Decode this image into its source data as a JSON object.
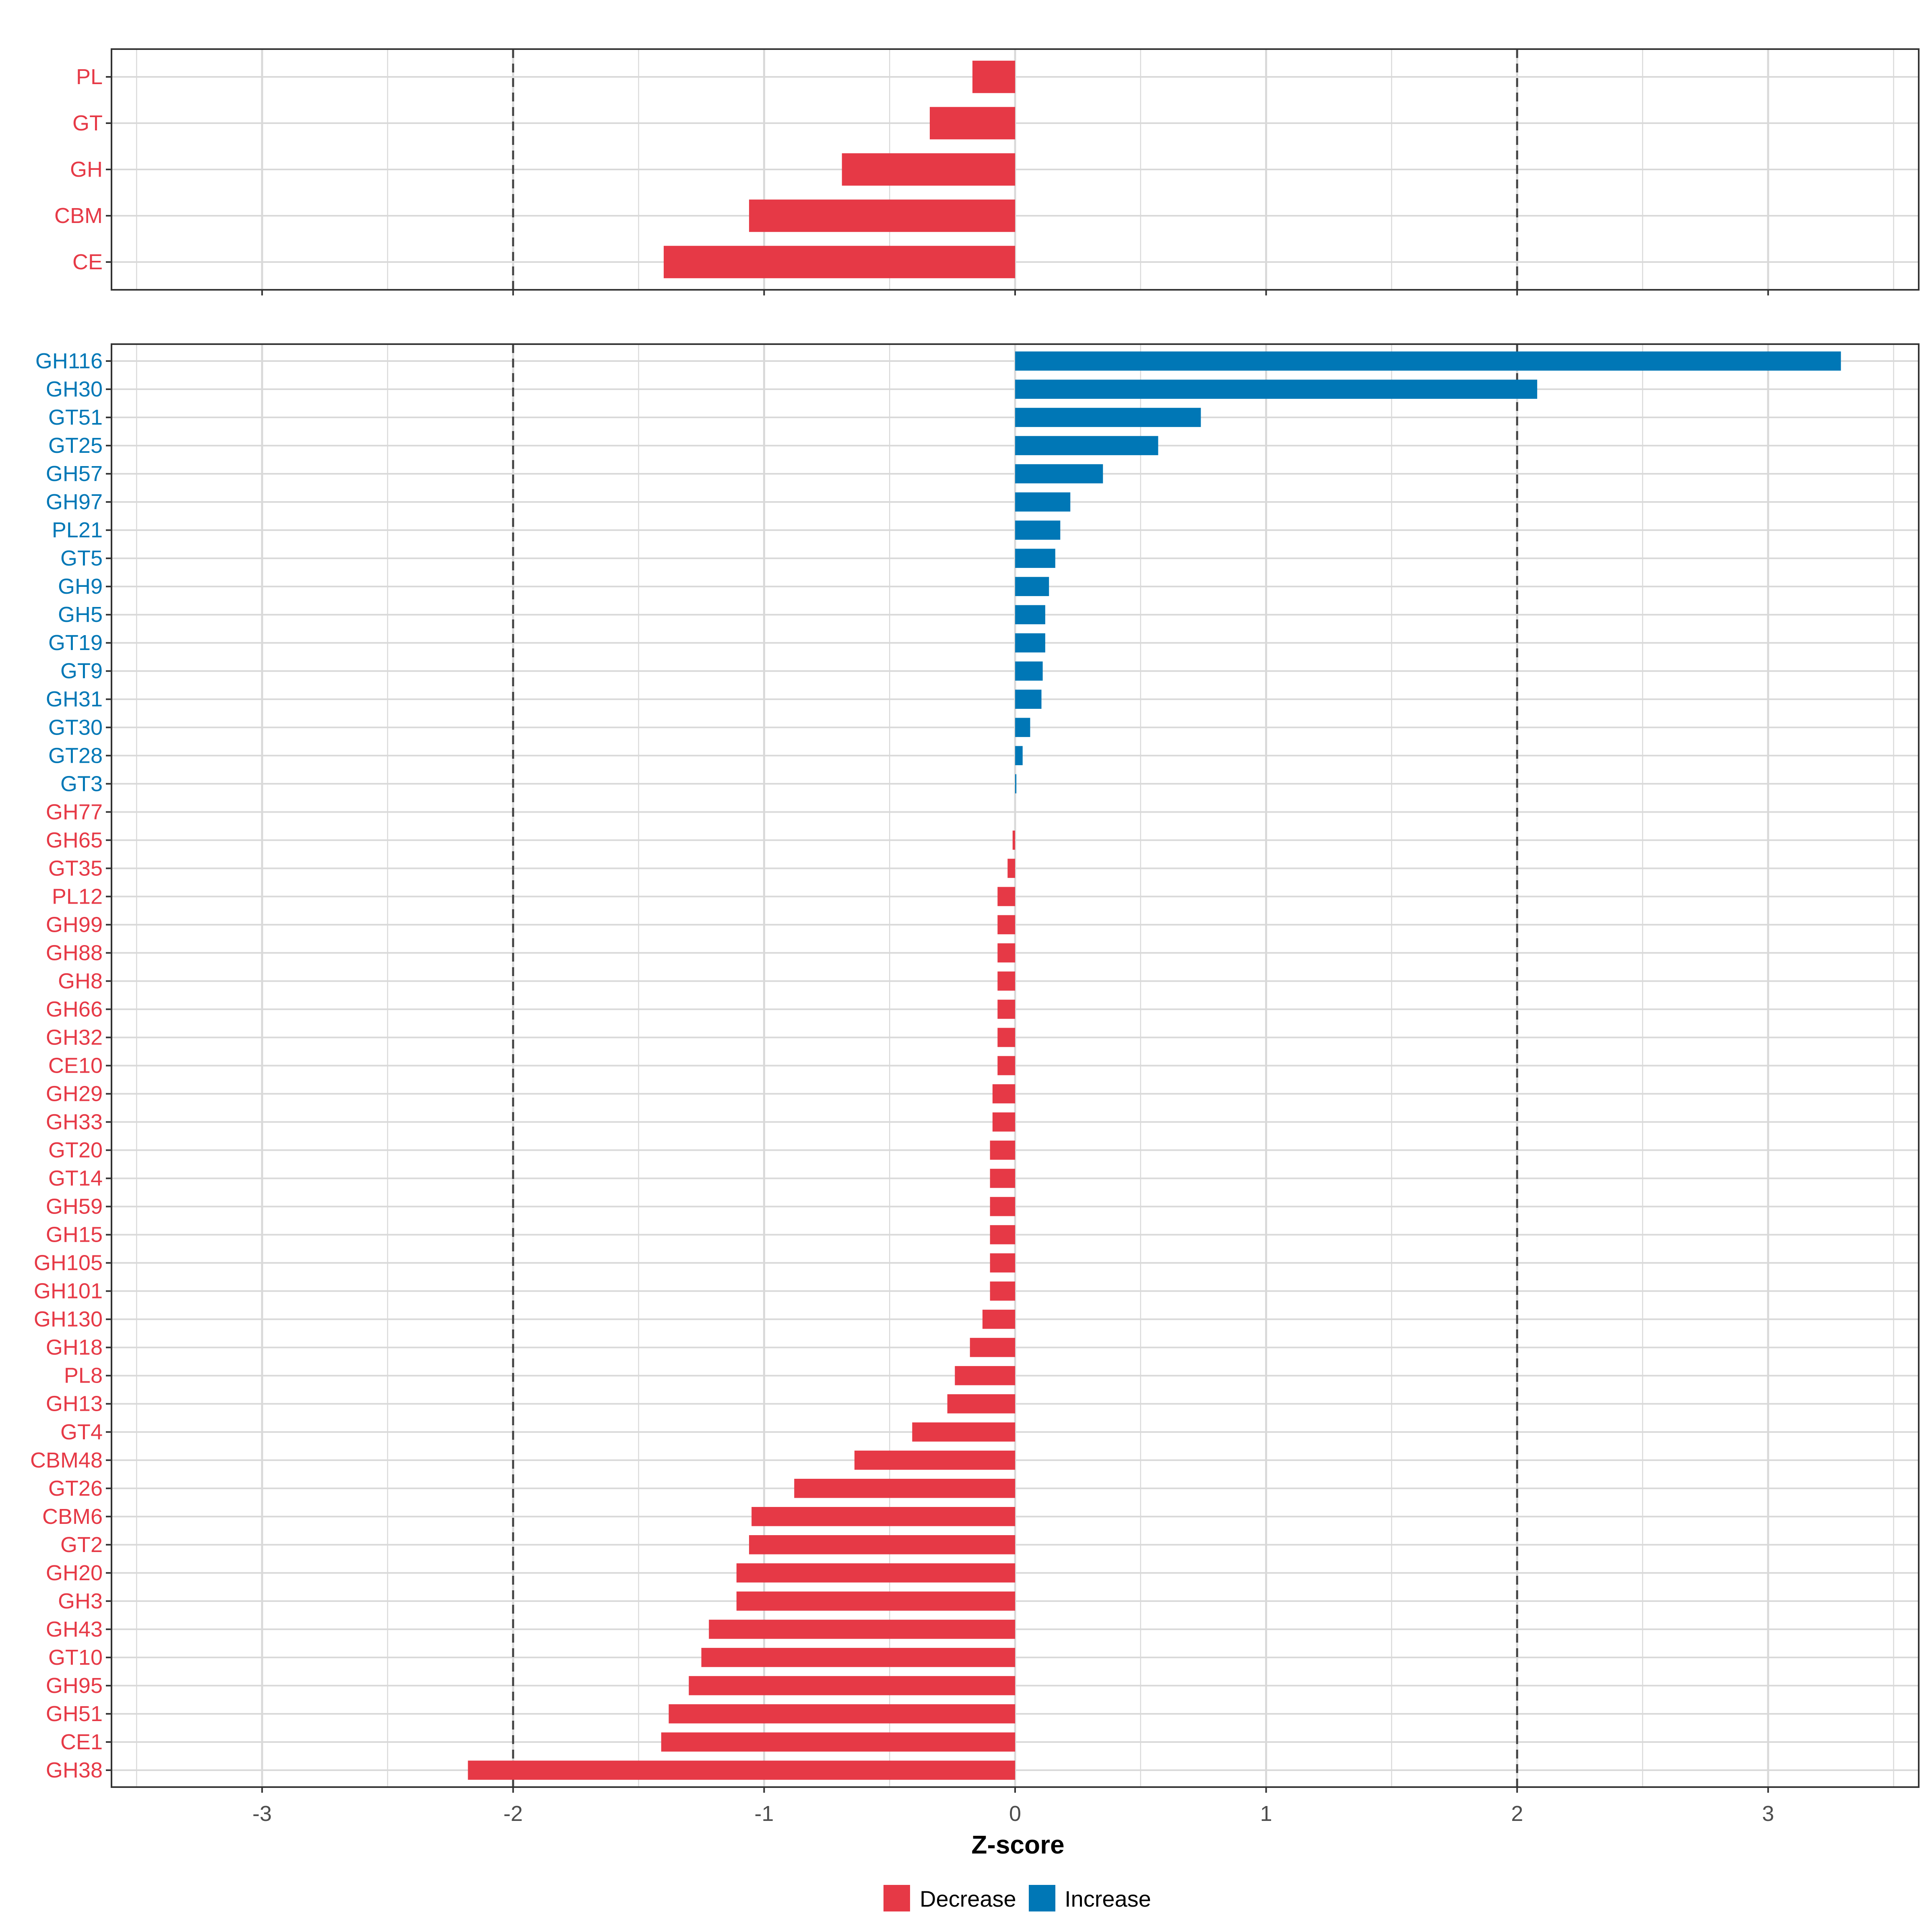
{
  "chart_data": [
    {
      "type": "bar",
      "orientation": "horizontal",
      "panel": "top",
      "categories": [
        "PL",
        "GT",
        "GH",
        "CBM",
        "CE"
      ],
      "values": [
        -0.17,
        -0.34,
        -0.69,
        -1.06,
        -1.4
      ],
      "xlim": [
        -3.6,
        3.6
      ],
      "reference_lines": [
        -2,
        2
      ],
      "grid": true
    },
    {
      "type": "bar",
      "orientation": "horizontal",
      "panel": "bottom",
      "categories": [
        "GH116",
        "GH30",
        "GT51",
        "GT25",
        "GH57",
        "GH97",
        "PL21",
        "GT5",
        "GH9",
        "GH5",
        "GT19",
        "GT9",
        "GH31",
        "GT30",
        "GT28",
        "GT3",
        "GH77",
        "GH65",
        "GT35",
        "PL12",
        "GH99",
        "GH88",
        "GH8",
        "GH66",
        "GH32",
        "CE10",
        "GH29",
        "GH33",
        "GT20",
        "GT14",
        "GH59",
        "GH15",
        "GH105",
        "GH101",
        "GH130",
        "GH18",
        "PL8",
        "GH13",
        "GT4",
        "CBM48",
        "GT26",
        "CBM6",
        "GT2",
        "GH20",
        "GH3",
        "GH43",
        "GT10",
        "GH95",
        "GH51",
        "CE1",
        "GH38"
      ],
      "values": [
        3.29,
        2.08,
        0.74,
        0.57,
        0.35,
        0.22,
        0.18,
        0.16,
        0.135,
        0.12,
        0.12,
        0.11,
        0.105,
        0.06,
        0.03,
        0.005,
        0.0,
        -0.01,
        -0.03,
        -0.07,
        -0.07,
        -0.07,
        -0.07,
        -0.07,
        -0.07,
        -0.07,
        -0.09,
        -0.09,
        -0.1,
        -0.1,
        -0.1,
        -0.1,
        -0.1,
        -0.1,
        -0.13,
        -0.18,
        -0.24,
        -0.27,
        -0.41,
        -0.64,
        -0.88,
        -1.05,
        -1.06,
        -1.11,
        -1.11,
        -1.22,
        -1.25,
        -1.3,
        -1.38,
        -1.41,
        -2.18
      ],
      "xlim": [
        -3.6,
        3.6
      ],
      "xticks": [
        -3,
        -2,
        -1,
        0,
        1,
        2,
        3
      ],
      "xtick_labels": [
        "-3",
        "-2",
        "-1",
        "0",
        "1",
        "2",
        "3"
      ],
      "xlabel": "Z-score",
      "reference_lines": [
        -2,
        2
      ],
      "grid": true
    }
  ],
  "legend": {
    "position": "bottom",
    "items": [
      {
        "label": "Decrease",
        "color": "#e63946"
      },
      {
        "label": "Increase",
        "color": "#0077b6"
      }
    ]
  },
  "colors": {
    "decrease": "#e63946",
    "increase": "#0077b6",
    "grid": "#d9d9d9",
    "reference": "#444444",
    "axis_text": "#4d4d4d"
  }
}
